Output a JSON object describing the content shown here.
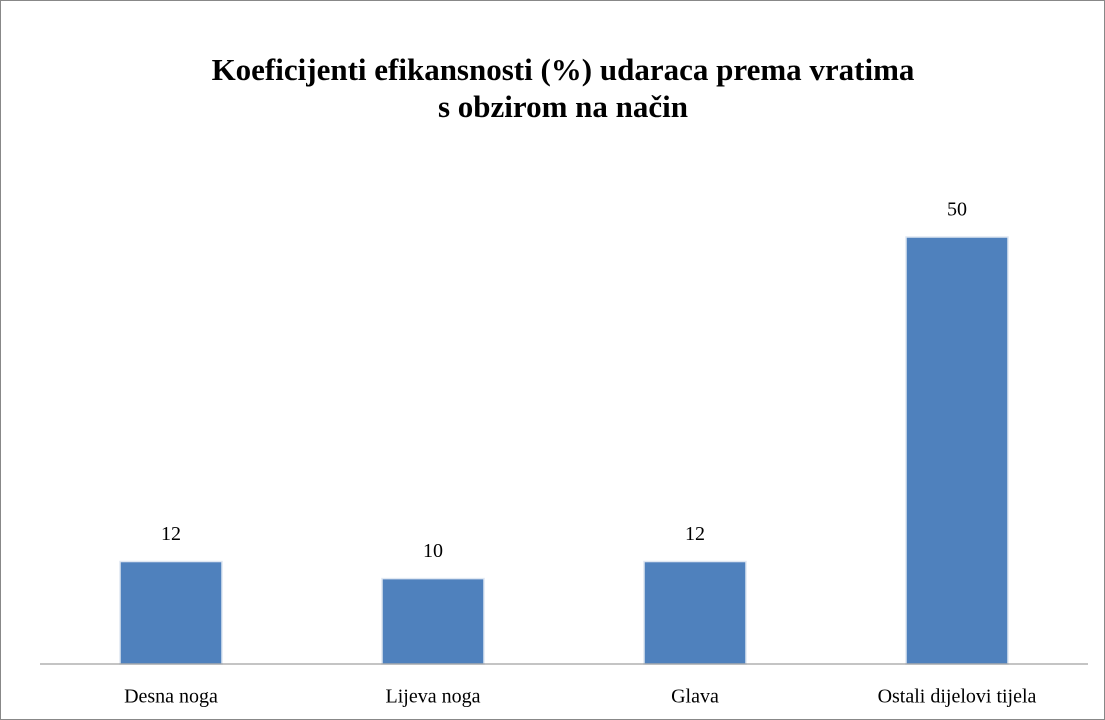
{
  "chart_data": {
    "type": "bar",
    "title": [
      "Koeficijenti efikansnosti (%) udaraca prema vratima",
      "s obzirom na način"
    ],
    "categories": [
      "Desna noga",
      "Lijeva noga",
      "Glava",
      "Ostali dijelovi tijela"
    ],
    "values": [
      12,
      10,
      12,
      50
    ],
    "color": "#4f81bd",
    "ylim": [
      0,
      50
    ]
  }
}
